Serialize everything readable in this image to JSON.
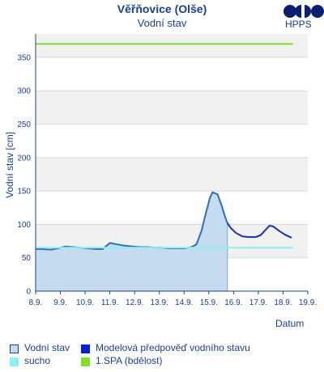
{
  "header": {
    "title": "Věřňovice (Olše)",
    "subtitle": "Vodní stav",
    "logo_text": "HPPS"
  },
  "colors": {
    "observed": "#2f6fb8",
    "observed_fill": "#c5dbf0",
    "forecast": "#1a2fb0",
    "sucho": "#8ff0f0",
    "spa1": "#7ee02a",
    "axis": "#1b3f94",
    "band": "#f1f1f1",
    "grid": "#d8d8d8"
  },
  "legend": [
    {
      "label": "Vodní stav",
      "color": "#c5dbf0",
      "border": "#1b3f94"
    },
    {
      "label": "Modelová předpověď vodního stavu",
      "color": "#0a1fd6",
      "border": "#0a1fd6"
    },
    {
      "label": "sucho",
      "color": "#8ff0f0",
      "border": "#8ff0f0"
    },
    {
      "label": "1.SPA (bdělost)",
      "color": "#7ee02a",
      "border": "#7ee02a"
    }
  ],
  "chart_data": {
    "type": "line",
    "xlabel": "Datum",
    "ylabel": "Vodní stav [cm]",
    "x_ticks": [
      "8.9.",
      "9.9.",
      "10.9.",
      "11.9.",
      "12.9.",
      "13.9.",
      "14.9.",
      "15.9.",
      "16.9.",
      "17.9.",
      "18.9.",
      "19.9."
    ],
    "xlim": [
      0,
      11
    ],
    "ylim": [
      0,
      385
    ],
    "y_ticks": [
      0,
      50,
      100,
      150,
      200,
      250,
      300,
      350
    ],
    "grid": true,
    "series": [
      {
        "name": "Vodní stav",
        "kind": "area",
        "points": [
          [
            0,
            63
          ],
          [
            0.3,
            63
          ],
          [
            0.6,
            62
          ],
          [
            0.9,
            64
          ],
          [
            1.2,
            67
          ],
          [
            1.5,
            66
          ],
          [
            1.8,
            65
          ],
          [
            2.1,
            64
          ],
          [
            2.4,
            63
          ],
          [
            2.7,
            63
          ],
          [
            3.0,
            72
          ],
          [
            3.3,
            70
          ],
          [
            3.6,
            68
          ],
          [
            3.9,
            67
          ],
          [
            4.2,
            66
          ],
          [
            4.5,
            66
          ],
          [
            4.8,
            65
          ],
          [
            5.1,
            65
          ],
          [
            5.4,
            64
          ],
          [
            5.7,
            64
          ],
          [
            6.0,
            64
          ],
          [
            6.3,
            66
          ],
          [
            6.5,
            70
          ],
          [
            6.7,
            90
          ],
          [
            6.9,
            120
          ],
          [
            7.05,
            140
          ],
          [
            7.15,
            148
          ],
          [
            7.35,
            145
          ],
          [
            7.5,
            130
          ],
          [
            7.65,
            112
          ],
          [
            7.75,
            102
          ]
        ]
      },
      {
        "name": "Modelová předpověď vodního stavu",
        "kind": "line",
        "points": [
          [
            7.75,
            102
          ],
          [
            7.9,
            94
          ],
          [
            8.1,
            87
          ],
          [
            8.35,
            82
          ],
          [
            8.6,
            81
          ],
          [
            8.9,
            81
          ],
          [
            9.1,
            84
          ],
          [
            9.3,
            92
          ],
          [
            9.45,
            98
          ],
          [
            9.6,
            97
          ],
          [
            9.85,
            90
          ],
          [
            10.1,
            84
          ],
          [
            10.35,
            80
          ]
        ]
      },
      {
        "name": "sucho",
        "kind": "threshold",
        "points": [
          [
            0,
            65
          ],
          [
            10.4,
            65
          ]
        ]
      },
      {
        "name": "1.SPA (bdělost)",
        "kind": "threshold",
        "points": [
          [
            0,
            370
          ],
          [
            10.4,
            370
          ]
        ]
      }
    ]
  }
}
